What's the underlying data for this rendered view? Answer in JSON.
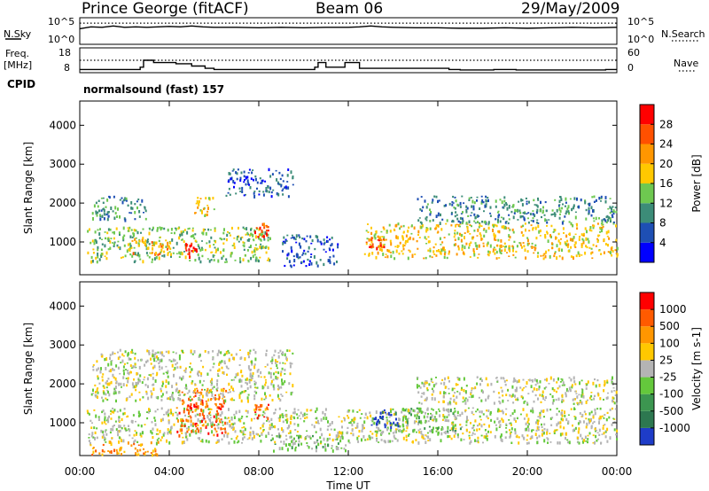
{
  "header": {
    "station": "Prince George (fitACF)",
    "beam": "Beam 06",
    "date": "29/May/2009"
  },
  "left_labels": {
    "nsky": "N.Sky",
    "freq": "Freq.",
    "freq_unit": "[MHz]",
    "cpid": "CPID",
    "nsky_top_tick": "10^5",
    "nsky_bottom_tick": "10^0",
    "freq_top_tick": "18",
    "freq_bottom_tick": "8"
  },
  "right_labels": {
    "nsearch": "N.Search",
    "nave": "Nave",
    "nsearch_top_tick": "10^5",
    "nsearch_bottom_tick": "10^0",
    "nave_top_tick": "60",
    "nave_bottom_tick": "0"
  },
  "cpid_text": "normalsound (fast) 157",
  "chart_data": [
    {
      "type": "line",
      "panel": "noise",
      "series": [
        {
          "name": "N.Sky",
          "style": "solid",
          "x": [
            0,
            0.5,
            1.0,
            1.5,
            2.0,
            2.5,
            3.0,
            3.5,
            4.0,
            4.5,
            5.0,
            5.5,
            6.0,
            7.0,
            8.0,
            9.0,
            10.0,
            11.0,
            12.0,
            12.5,
            13.0,
            13.5,
            14.0,
            15.0,
            16.0,
            17.0,
            18.0,
            19.0,
            20.0,
            21.0,
            22.0,
            23.0,
            24.0
          ],
          "values": [
            3.0,
            3.4,
            3.3,
            3.6,
            3.3,
            3.4,
            3.3,
            3.4,
            3.5,
            3.4,
            3.6,
            3.4,
            3.3,
            3.3,
            3.2,
            3.3,
            3.2,
            3.3,
            3.3,
            3.4,
            3.6,
            3.4,
            3.3,
            3.2,
            3.2,
            3.1,
            3.1,
            3.2,
            3.1,
            3.2,
            3.3,
            3.2,
            3.3
          ]
        },
        {
          "name": "N.Search",
          "style": "dotted",
          "x": [
            0,
            24
          ],
          "values": [
            4.2,
            4.2
          ]
        }
      ],
      "ylim": [
        0,
        5
      ]
    },
    {
      "type": "line",
      "panel": "frequency",
      "series": [
        {
          "name": "Freq.",
          "style": "solid",
          "step": true,
          "x": [
            0,
            2.7,
            2.85,
            3.3,
            4.3,
            5.0,
            5.6,
            6.0,
            10.5,
            10.65,
            11.0,
            11.75,
            11.85,
            12.35,
            12.5,
            16.5,
            17.0,
            18.5,
            19.5,
            23.5,
            24
          ],
          "values": [
            9,
            10,
            13,
            12,
            11.5,
            10.5,
            9.5,
            9,
            10,
            12,
            10,
            10,
            12,
            12,
            9.5,
            9,
            8.8,
            9,
            8.8,
            9,
            9
          ]
        },
        {
          "name": "Nave",
          "style": "dotted",
          "x": [
            0,
            24
          ],
          "values": [
            30,
            30
          ]
        }
      ],
      "ylim": [
        8,
        18
      ],
      "ylim_right": [
        0,
        60
      ]
    },
    {
      "type": "heatmap",
      "panel": "power",
      "xlabel": "",
      "ylabel": "Slant Range [km]",
      "xlim": [
        0,
        24
      ],
      "ylim": [
        180,
        4600
      ],
      "yticks": [
        "1000",
        "2000",
        "3000",
        "4000"
      ],
      "colorbar": {
        "label": "Power [dB]",
        "ticks": [
          "4",
          "8",
          "12",
          "16",
          "20",
          "24",
          "28"
        ],
        "colors": [
          "#0000ff",
          "#1e4fb4",
          "#3c8c78",
          "#6ec850",
          "#ffc800",
          "#ff9600",
          "#ff5000",
          "#ff0000"
        ]
      },
      "blobs": [
        {
          "t0": 0.3,
          "t1": 8.5,
          "r0": 500,
          "r1": 1400,
          "level": 3
        },
        {
          "t0": 2.3,
          "t1": 4.0,
          "r0": 700,
          "r1": 1100,
          "level": 5
        },
        {
          "t0": 4.7,
          "t1": 5.2,
          "r0": 650,
          "r1": 1000,
          "level": 7
        },
        {
          "t0": 7.8,
          "t1": 8.4,
          "r0": 1100,
          "r1": 1500,
          "level": 6
        },
        {
          "t0": 0.5,
          "t1": 3.0,
          "r0": 1600,
          "r1": 2200,
          "level": 2
        },
        {
          "t0": 5.0,
          "t1": 6.0,
          "r0": 1700,
          "r1": 2200,
          "level": 4
        },
        {
          "t0": 6.5,
          "t1": 9.5,
          "r0": 2200,
          "r1": 2900,
          "level": 1
        },
        {
          "t0": 12.7,
          "t1": 24.0,
          "r0": 600,
          "r1": 1500,
          "level": 4
        },
        {
          "t0": 12.7,
          "t1": 13.6,
          "r0": 850,
          "r1": 1150,
          "level": 6
        },
        {
          "t0": 15.0,
          "t1": 24.0,
          "r0": 1500,
          "r1": 2200,
          "level": 2
        },
        {
          "t0": 9.0,
          "t1": 11.5,
          "r0": 400,
          "r1": 1200,
          "level": 1
        }
      ]
    },
    {
      "type": "heatmap",
      "panel": "velocity",
      "xlabel": "Time UT",
      "ylabel": "Slant Range [km]",
      "xlim": [
        0,
        24
      ],
      "ylim": [
        180,
        4600
      ],
      "xticks": [
        "00:00",
        "04:00",
        "08:00",
        "12:00",
        "16:00",
        "20:00",
        "00:00"
      ],
      "yticks": [
        "1000",
        "2000",
        "3000",
        "4000"
      ],
      "colorbar": {
        "label": "Velocity [m s-1]",
        "ticks": [
          "1000",
          "500",
          "100",
          "25",
          "-25",
          "-100",
          "-500",
          "-1000"
        ],
        "colors": [
          "#1e3cc8",
          "#2d7850",
          "#3c9650",
          "#64c83c",
          "#b4b4b4",
          "#ffc800",
          "#ff9600",
          "#ff5a00",
          "#ff0000"
        ]
      },
      "blobs": [
        {
          "t0": 0.3,
          "t1": 24.0,
          "r0": 500,
          "r1": 1400,
          "level": 4
        },
        {
          "t0": 4.3,
          "t1": 6.5,
          "r0": 700,
          "r1": 1900,
          "level": 7
        },
        {
          "t0": 7.8,
          "t1": 8.4,
          "r0": 1100,
          "r1": 1500,
          "level": 7
        },
        {
          "t0": 0.4,
          "t1": 3.5,
          "r0": 180,
          "r1": 550,
          "level": 6
        },
        {
          "t0": 13.0,
          "t1": 14.2,
          "r0": 900,
          "r1": 1400,
          "level": 0
        },
        {
          "t0": 14.0,
          "t1": 17.0,
          "r0": 800,
          "r1": 1400,
          "level": 3
        },
        {
          "t0": 8.5,
          "t1": 12.0,
          "r0": 300,
          "r1": 700,
          "level": 3
        },
        {
          "t0": 0.5,
          "t1": 9.5,
          "r0": 1600,
          "r1": 2900,
          "level": 4
        },
        {
          "t0": 15.0,
          "t1": 24.0,
          "r0": 1500,
          "r1": 2200,
          "level": 4
        }
      ]
    }
  ]
}
